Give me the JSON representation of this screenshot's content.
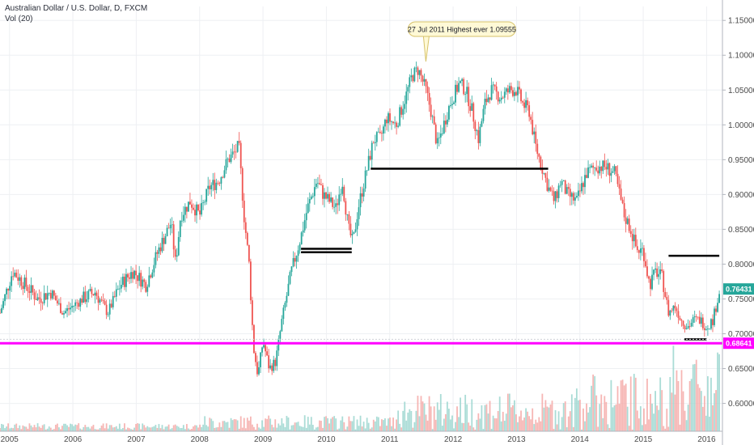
{
  "header": {
    "symbol_title": "Australian Dollar / U.S. Dollar, D, FXCM",
    "volume_label": "Vol (20)"
  },
  "colors": {
    "up": "#26a69a",
    "down": "#ef5350",
    "current_price_tag": "#26a69a",
    "support_line": "#ff00ff",
    "drawn_lines": "#000000",
    "annotation_fill": "#fff9d6",
    "annotation_border": "#d6c26a"
  },
  "chart_data": {
    "type": "line",
    "title": "Australian Dollar / U.S. Dollar, D, FXCM",
    "xlabel": "",
    "ylabel": "",
    "x_ticks": [
      "2005",
      "2006",
      "2007",
      "2008",
      "2009",
      "2010",
      "2011",
      "2012",
      "2013",
      "2014",
      "2015",
      "2016"
    ],
    "y_ticks": [
      "0.60000",
      "0.65000",
      "0.70000",
      "0.75000",
      "0.80000",
      "0.85000",
      "0.90000",
      "0.95000",
      "1.00000",
      "1.05000",
      "1.10000",
      "1.15000"
    ],
    "xlim": [
      2004.85,
      2016.25
    ],
    "ylim": [
      0.56,
      1.17
    ],
    "grid": true,
    "series": [
      {
        "name": "",
        "x": [
          2004.85,
          2005.05,
          2005.25,
          2005.45,
          2005.65,
          2005.85,
          2006.0,
          2006.15,
          2006.35,
          2006.55,
          2006.75,
          2006.95,
          2007.15,
          2007.35,
          2007.55,
          2007.62,
          2007.7,
          2007.85,
          2008.0,
          2008.15,
          2008.3,
          2008.45,
          2008.55,
          2008.62,
          2008.7,
          2008.78,
          2008.85,
          2008.92,
          2009.0,
          2009.1,
          2009.2,
          2009.3,
          2009.45,
          2009.6,
          2009.7,
          2009.85,
          2009.95,
          2010.05,
          2010.15,
          2010.25,
          2010.35,
          2010.42,
          2010.5,
          2010.6,
          2010.75,
          2010.85,
          2010.95,
          2011.1,
          2011.25,
          2011.35,
          2011.45,
          2011.57,
          2011.65,
          2011.75,
          2011.85,
          2011.95,
          2012.1,
          2012.2,
          2012.3,
          2012.4,
          2012.5,
          2012.6,
          2012.75,
          2012.9,
          2013.0,
          2013.1,
          2013.2,
          2013.3,
          2013.4,
          2013.5,
          2013.6,
          2013.7,
          2013.8,
          2013.95,
          2014.1,
          2014.25,
          2014.4,
          2014.55,
          2014.7,
          2014.8,
          2014.9,
          2015.0,
          2015.1,
          2015.2,
          2015.3,
          2015.4,
          2015.5,
          2015.6,
          2015.7,
          2015.8,
          2015.9,
          2016.0,
          2016.1,
          2016.2
        ],
        "values": [
          0.73,
          0.79,
          0.77,
          0.75,
          0.76,
          0.73,
          0.74,
          0.75,
          0.76,
          0.73,
          0.77,
          0.79,
          0.77,
          0.82,
          0.86,
          0.8,
          0.87,
          0.89,
          0.87,
          0.91,
          0.92,
          0.95,
          0.96,
          0.97,
          0.87,
          0.8,
          0.68,
          0.64,
          0.69,
          0.65,
          0.66,
          0.72,
          0.79,
          0.84,
          0.88,
          0.92,
          0.9,
          0.89,
          0.88,
          0.92,
          0.85,
          0.83,
          0.88,
          0.92,
          0.98,
          0.98,
          1.01,
          1.0,
          1.04,
          1.07,
          1.08,
          1.05,
          1.02,
          0.97,
          1.0,
          1.03,
          1.06,
          1.05,
          1.02,
          0.98,
          1.03,
          1.05,
          1.04,
          1.05,
          1.05,
          1.03,
          1.02,
          0.97,
          0.94,
          0.91,
          0.89,
          0.92,
          0.9,
          0.89,
          0.93,
          0.94,
          0.94,
          0.93,
          0.87,
          0.85,
          0.82,
          0.82,
          0.77,
          0.79,
          0.78,
          0.73,
          0.74,
          0.72,
          0.71,
          0.72,
          0.72,
          0.71,
          0.72,
          0.76
        ]
      }
    ],
    "price_tags": [
      {
        "label": "0.76431",
        "value": 0.76431
      },
      {
        "label": "0.68641",
        "value": 0.68641
      }
    ],
    "horizontal_lines": [
      {
        "from": 2004.85,
        "to": 2016.25,
        "value": 0.68641
      },
      {
        "from": 2009.6,
        "to": 2010.4,
        "value": 0.822
      },
      {
        "from": 2009.6,
        "to": 2010.4,
        "value": 0.817
      },
      {
        "from": 2010.7,
        "to": 2013.5,
        "value": 0.937
      },
      {
        "from": 2013.5,
        "to": 2013.5,
        "value": 0.943
      },
      {
        "from": 2015.4,
        "to": 2016.2,
        "value": 0.812
      },
      {
        "from": 2015.65,
        "to": 2016.0,
        "value": 0.692
      }
    ],
    "annotation": {
      "text": "27 Jul 2011 Highest ever 1.09555",
      "x": 2011.57,
      "value": 1.09555
    }
  }
}
